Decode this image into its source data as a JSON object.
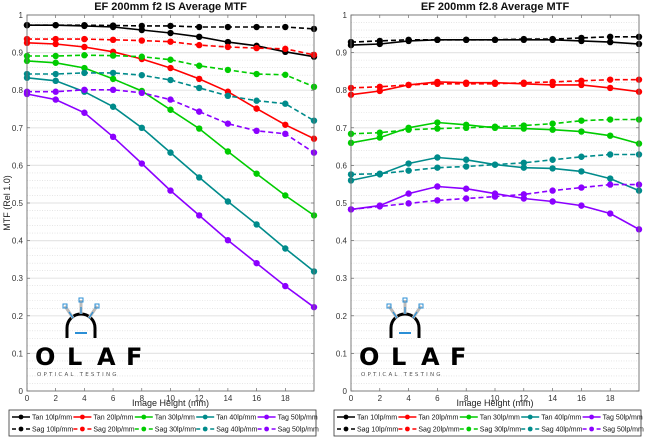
{
  "chart_data": [
    {
      "type": "line",
      "title": "EF 200mm f2 IS Average MTF",
      "xlabel": "Image Height (mm)",
      "ylabel": "MTF (Rel 1.0)",
      "xlim": [
        0,
        20
      ],
      "ylim": [
        0,
        1
      ],
      "xticks": [
        "0",
        "2",
        "4",
        "6",
        "8",
        "10",
        "12",
        "14",
        "16",
        "18"
      ],
      "yticks": [
        "0",
        "0.1",
        "0.2",
        "0.3",
        "0.4",
        "0.5",
        "0.6",
        "0.7",
        "0.8",
        "0.9",
        "1"
      ],
      "grid": true,
      "legend_position": "bottom",
      "x": [
        0,
        2,
        4,
        6,
        8,
        10,
        12,
        14,
        16,
        18,
        20
      ],
      "series": [
        {
          "name": "Tan 10lp/mm",
          "color": "#000000",
          "style": "solid",
          "values": [
            0.973,
            0.973,
            0.971,
            0.968,
            0.96,
            0.952,
            0.942,
            0.928,
            0.918,
            0.902,
            0.889
          ]
        },
        {
          "name": "Sag 10lp/mm",
          "color": "#000000",
          "style": "dashed",
          "values": [
            0.973,
            0.973,
            0.973,
            0.972,
            0.971,
            0.971,
            0.968,
            0.968,
            0.968,
            0.968,
            0.963
          ]
        },
        {
          "name": "Tan 20lp/mm",
          "color": "#ff0000",
          "style": "solid",
          "values": [
            0.926,
            0.923,
            0.915,
            0.902,
            0.883,
            0.859,
            0.83,
            0.796,
            0.751,
            0.708,
            0.671
          ]
        },
        {
          "name": "Sag 20lp/mm",
          "color": "#ff0000",
          "style": "dashed",
          "values": [
            0.936,
            0.936,
            0.936,
            0.934,
            0.932,
            0.929,
            0.92,
            0.915,
            0.912,
            0.91,
            0.894
          ]
        },
        {
          "name": "Tan 30lp/mm",
          "color": "#00cc00",
          "style": "solid",
          "values": [
            0.878,
            0.873,
            0.859,
            0.83,
            0.798,
            0.748,
            0.698,
            0.637,
            0.578,
            0.52,
            0.467
          ]
        },
        {
          "name": "Sag 30lp/mm",
          "color": "#00cc00",
          "style": "dashed",
          "values": [
            0.891,
            0.891,
            0.893,
            0.892,
            0.889,
            0.881,
            0.865,
            0.854,
            0.843,
            0.841,
            0.809
          ]
        },
        {
          "name": "Tan 40lp/mm",
          "color": "#008b8b",
          "style": "solid",
          "values": [
            0.833,
            0.825,
            0.796,
            0.756,
            0.7,
            0.634,
            0.568,
            0.504,
            0.443,
            0.379,
            0.318
          ]
        },
        {
          "name": "Sag 40lp/mm",
          "color": "#008b8b",
          "style": "dashed",
          "values": [
            0.843,
            0.843,
            0.846,
            0.846,
            0.84,
            0.827,
            0.806,
            0.785,
            0.772,
            0.764,
            0.719
          ]
        },
        {
          "name": "Tag 50lp/mm",
          "color": "#8b00ff",
          "style": "solid",
          "values": [
            0.79,
            0.775,
            0.74,
            0.676,
            0.605,
            0.533,
            0.467,
            0.401,
            0.34,
            0.279,
            0.223
          ]
        },
        {
          "name": "Sag 50lp/mm",
          "color": "#8b00ff",
          "style": "dashed",
          "values": [
            0.796,
            0.796,
            0.801,
            0.801,
            0.793,
            0.775,
            0.743,
            0.711,
            0.692,
            0.684,
            0.634
          ]
        }
      ]
    },
    {
      "type": "line",
      "title": "EF 200mm f2.8 Average MTF",
      "xlabel": "Image Height (mm)",
      "ylabel": "",
      "xlim": [
        0,
        20
      ],
      "ylim": [
        0,
        1
      ],
      "xticks": [
        "0",
        "2",
        "4",
        "6",
        "8",
        "10",
        "12",
        "14",
        "16",
        "18"
      ],
      "yticks": [
        "0",
        "0.1",
        "0.2",
        "0.3",
        "0.4",
        "0.5",
        "0.6",
        "0.7",
        "0.8",
        "0.9",
        "1"
      ],
      "grid": true,
      "legend_position": "bottom",
      "x": [
        0,
        2,
        4,
        6,
        8,
        10,
        12,
        14,
        16,
        18,
        20
      ],
      "series": [
        {
          "name": "Tan 10lp/mm",
          "color": "#000000",
          "style": "solid",
          "values": [
            0.92,
            0.923,
            0.931,
            0.934,
            0.934,
            0.934,
            0.934,
            0.934,
            0.931,
            0.928,
            0.923
          ]
        },
        {
          "name": "Sag 10lp/mm",
          "color": "#000000",
          "style": "dashed",
          "values": [
            0.928,
            0.931,
            0.934,
            0.934,
            0.934,
            0.934,
            0.936,
            0.936,
            0.939,
            0.942,
            0.942
          ]
        },
        {
          "name": "Tan 20lp/mm",
          "color": "#ff0000",
          "style": "solid",
          "values": [
            0.788,
            0.798,
            0.814,
            0.822,
            0.82,
            0.82,
            0.817,
            0.814,
            0.814,
            0.806,
            0.796
          ]
        },
        {
          "name": "Sag 20lp/mm",
          "color": "#ff0000",
          "style": "dashed",
          "values": [
            0.806,
            0.809,
            0.814,
            0.817,
            0.817,
            0.817,
            0.82,
            0.822,
            0.825,
            0.828,
            0.828
          ]
        },
        {
          "name": "Tan 30lp/mm",
          "color": "#00cc00",
          "style": "solid",
          "values": [
            0.66,
            0.674,
            0.7,
            0.714,
            0.708,
            0.7,
            0.698,
            0.695,
            0.69,
            0.679,
            0.658
          ]
        },
        {
          "name": "Sag 30lp/mm",
          "color": "#00cc00",
          "style": "dashed",
          "values": [
            0.684,
            0.687,
            0.695,
            0.698,
            0.7,
            0.703,
            0.706,
            0.711,
            0.719,
            0.722,
            0.722
          ]
        },
        {
          "name": "Tan 40lp/mm",
          "color": "#008b8b",
          "style": "solid",
          "values": [
            0.56,
            0.576,
            0.605,
            0.621,
            0.615,
            0.602,
            0.594,
            0.592,
            0.584,
            0.565,
            0.533
          ]
        },
        {
          "name": "Sag 40lp/mm",
          "color": "#008b8b",
          "style": "dashed",
          "values": [
            0.576,
            0.578,
            0.586,
            0.594,
            0.597,
            0.602,
            0.607,
            0.615,
            0.623,
            0.629,
            0.629
          ]
        },
        {
          "name": "Tag 50lp/mm",
          "color": "#8b00ff",
          "style": "solid",
          "values": [
            0.483,
            0.493,
            0.525,
            0.544,
            0.538,
            0.525,
            0.512,
            0.504,
            0.493,
            0.472,
            0.43
          ]
        },
        {
          "name": "Sag 50lp/mm",
          "color": "#8b00ff",
          "style": "dashed",
          "values": [
            0.483,
            0.491,
            0.499,
            0.507,
            0.512,
            0.517,
            0.523,
            0.533,
            0.541,
            0.549,
            0.549
          ]
        }
      ]
    }
  ],
  "logo": {
    "letters": [
      "O",
      "L",
      "A",
      "F"
    ],
    "subtitle": "OPTICAL TESTING",
    "accent_color": "#2b8fd6"
  }
}
